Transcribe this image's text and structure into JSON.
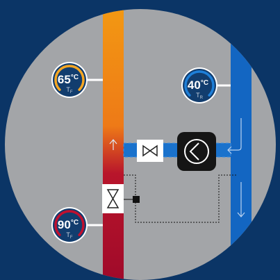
{
  "gauges": [
    {
      "value": "65",
      "unit": "°C",
      "label": "T",
      "sub": "F"
    },
    {
      "value": "40",
      "unit": "°C",
      "label": "T",
      "sub": "R"
    },
    {
      "value": "90",
      "unit": "°C",
      "label": "T",
      "sub": "F"
    }
  ]
}
